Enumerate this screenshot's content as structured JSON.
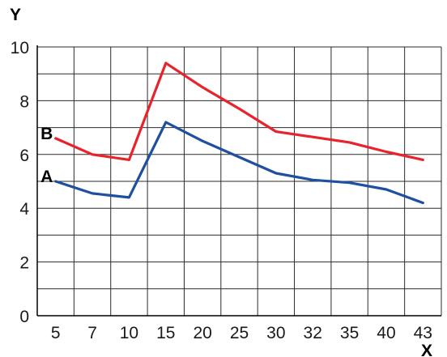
{
  "chart_data": {
    "type": "line",
    "xlabel": "X",
    "ylabel": "Y",
    "categories": [
      "5",
      "7",
      "10",
      "15",
      "20",
      "25",
      "30",
      "32",
      "35",
      "40",
      "43"
    ],
    "ylim": [
      0,
      10
    ],
    "yticks": [
      0,
      2,
      4,
      6,
      8,
      10
    ],
    "grid": true,
    "series": [
      {
        "name": "B",
        "color": "#e8232b",
        "values": [
          6.6,
          6.0,
          5.8,
          9.4,
          8.5,
          7.7,
          6.85,
          6.65,
          6.45,
          6.1,
          5.8
        ]
      },
      {
        "name": "A",
        "color": "#1f4f9f",
        "values": [
          5.0,
          4.55,
          4.4,
          7.2,
          6.5,
          5.9,
          5.3,
          5.05,
          4.95,
          4.7,
          4.2
        ]
      }
    ]
  }
}
